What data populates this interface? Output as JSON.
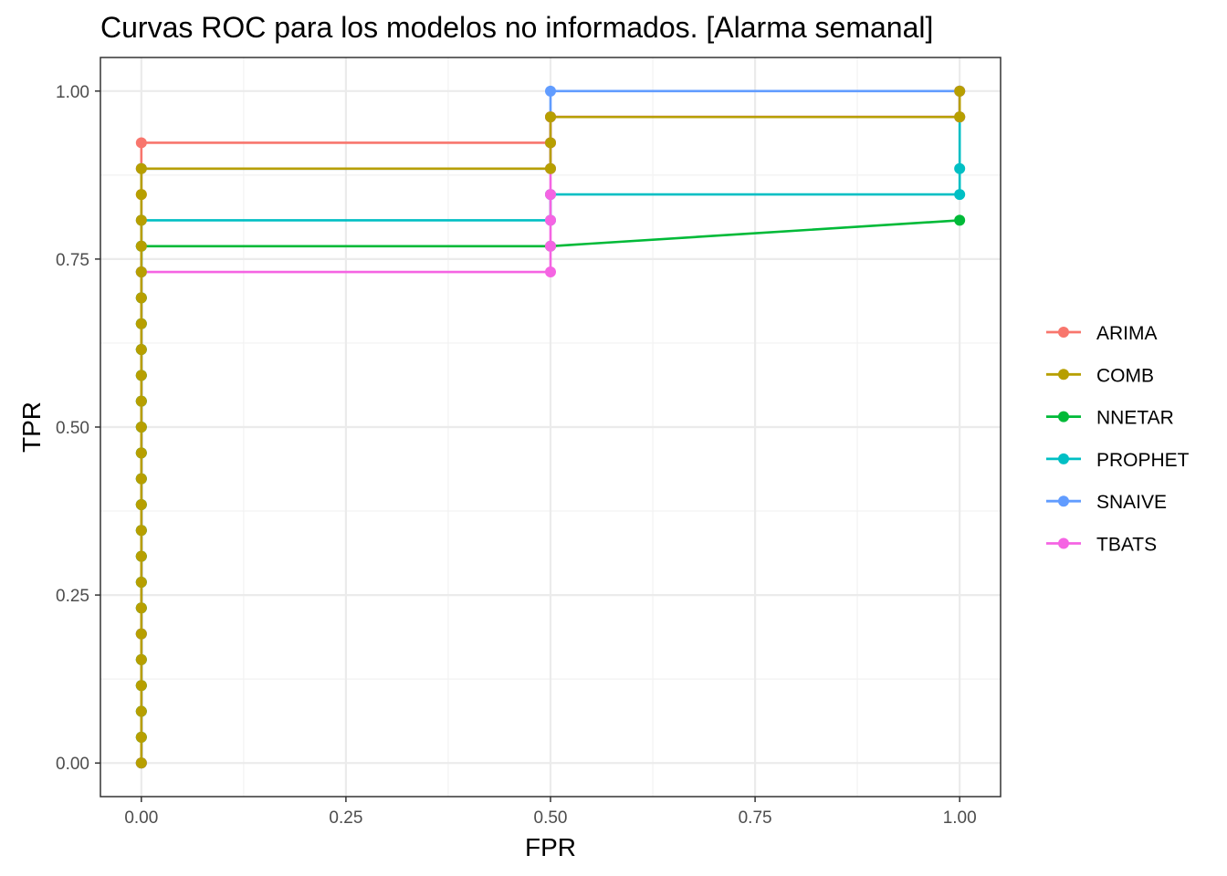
{
  "chart_data": {
    "type": "line",
    "title": "Curvas ROC para los modelos no informados. [Alarma semanal]",
    "xlabel": "FPR",
    "ylabel": "TPR",
    "xlim": [
      -0.05,
      1.05
    ],
    "ylim": [
      -0.05,
      1.05
    ],
    "xticks": [
      "0.00",
      "0.25",
      "0.50",
      "0.75",
      "1.00"
    ],
    "yticks": [
      "0.00",
      "0.25",
      "0.50",
      "0.75",
      "1.00"
    ],
    "grid": true,
    "legend_position": "right",
    "series": [
      {
        "name": "ARIMA",
        "color": "#F8766D",
        "points": [
          [
            0,
            0
          ],
          [
            0,
            0.0385
          ],
          [
            0,
            0.0769
          ],
          [
            0,
            0.1154
          ],
          [
            0,
            0.1538
          ],
          [
            0,
            0.1923
          ],
          [
            0,
            0.2308
          ],
          [
            0,
            0.2692
          ],
          [
            0,
            0.3077
          ],
          [
            0,
            0.3462
          ],
          [
            0,
            0.3846
          ],
          [
            0,
            0.4231
          ],
          [
            0,
            0.4615
          ],
          [
            0,
            0.5
          ],
          [
            0,
            0.5385
          ],
          [
            0,
            0.5769
          ],
          [
            0,
            0.6154
          ],
          [
            0,
            0.6538
          ],
          [
            0,
            0.6923
          ],
          [
            0,
            0.7308
          ],
          [
            0,
            0.7692
          ],
          [
            0,
            0.8077
          ],
          [
            0,
            0.8462
          ],
          [
            0,
            0.8846
          ],
          [
            0,
            0.9231
          ],
          [
            0.5,
            0.9231
          ],
          [
            0.5,
            0.9615
          ],
          [
            1,
            0.9615
          ],
          [
            1,
            1
          ]
        ]
      },
      {
        "name": "NNETAR",
        "color": "#00BA38",
        "points": [
          [
            0,
            0
          ],
          [
            0,
            0.0385
          ],
          [
            0,
            0.0769
          ],
          [
            0,
            0.1154
          ],
          [
            0,
            0.1538
          ],
          [
            0,
            0.1923
          ],
          [
            0,
            0.2308
          ],
          [
            0,
            0.2692
          ],
          [
            0,
            0.3077
          ],
          [
            0,
            0.3462
          ],
          [
            0,
            0.3846
          ],
          [
            0,
            0.4231
          ],
          [
            0,
            0.4615
          ],
          [
            0,
            0.5
          ],
          [
            0,
            0.5385
          ],
          [
            0,
            0.5769
          ],
          [
            0,
            0.6154
          ],
          [
            0,
            0.6538
          ],
          [
            0,
            0.6923
          ],
          [
            0,
            0.7308
          ],
          [
            0,
            0.7692
          ],
          [
            0.5,
            0.7692
          ],
          [
            1,
            0.8077
          ]
        ]
      },
      {
        "name": "PROPHET",
        "color": "#00BFC4",
        "points": [
          [
            0,
            0
          ],
          [
            0,
            0.0385
          ],
          [
            0,
            0.0769
          ],
          [
            0,
            0.1154
          ],
          [
            0,
            0.1538
          ],
          [
            0,
            0.1923
          ],
          [
            0,
            0.2308
          ],
          [
            0,
            0.2692
          ],
          [
            0,
            0.3077
          ],
          [
            0,
            0.3462
          ],
          [
            0,
            0.3846
          ],
          [
            0,
            0.4231
          ],
          [
            0,
            0.4615
          ],
          [
            0,
            0.5
          ],
          [
            0,
            0.5385
          ],
          [
            0,
            0.5769
          ],
          [
            0,
            0.6154
          ],
          [
            0,
            0.6538
          ],
          [
            0,
            0.6923
          ],
          [
            0,
            0.7308
          ],
          [
            0,
            0.7692
          ],
          [
            0,
            0.8077
          ],
          [
            0.5,
            0.8077
          ],
          [
            0.5,
            0.8462
          ],
          [
            1,
            0.8462
          ],
          [
            1,
            0.8846
          ],
          [
            1,
            0.9615
          ],
          [
            1,
            1
          ]
        ]
      },
      {
        "name": "SNAIVE",
        "color": "#619CFF",
        "points": [
          [
            0,
            0
          ],
          [
            0,
            0.1923
          ],
          [
            0,
            0.7308
          ],
          [
            0,
            0.8846
          ],
          [
            0.5,
            0.8846
          ],
          [
            0.5,
            0.9231
          ],
          [
            0.5,
            0.9615
          ],
          [
            0.5,
            1
          ],
          [
            1,
            1
          ]
        ]
      },
      {
        "name": "TBATS",
        "color": "#F564E3",
        "points": [
          [
            0,
            0
          ],
          [
            0,
            0.1923
          ],
          [
            0,
            0.7308
          ],
          [
            0.5,
            0.7308
          ],
          [
            0.5,
            0.7692
          ],
          [
            0.5,
            0.8077
          ],
          [
            0.5,
            0.8462
          ],
          [
            0.5,
            0.8846
          ],
          [
            0.5,
            0.9231
          ],
          [
            0.5,
            0.9615
          ],
          [
            1,
            0.9615
          ],
          [
            1,
            1
          ]
        ]
      },
      {
        "name": "COMB",
        "color": "#B79F00",
        "points": [
          [
            0,
            0
          ],
          [
            0,
            0.0385
          ],
          [
            0,
            0.0769
          ],
          [
            0,
            0.1154
          ],
          [
            0,
            0.1538
          ],
          [
            0,
            0.1923
          ],
          [
            0,
            0.2308
          ],
          [
            0,
            0.2692
          ],
          [
            0,
            0.3077
          ],
          [
            0,
            0.3462
          ],
          [
            0,
            0.3846
          ],
          [
            0,
            0.4231
          ],
          [
            0,
            0.4615
          ],
          [
            0,
            0.5
          ],
          [
            0,
            0.5385
          ],
          [
            0,
            0.5769
          ],
          [
            0,
            0.6154
          ],
          [
            0,
            0.6538
          ],
          [
            0,
            0.6923
          ],
          [
            0,
            0.7308
          ],
          [
            0,
            0.7692
          ],
          [
            0,
            0.8077
          ],
          [
            0,
            0.8462
          ],
          [
            0,
            0.8846
          ],
          [
            0.5,
            0.8846
          ],
          [
            0.5,
            0.9231
          ],
          [
            0.5,
            0.9615
          ],
          [
            1,
            0.9615
          ],
          [
            1,
            1
          ]
        ]
      }
    ],
    "legend": [
      {
        "name": "ARIMA",
        "color": "#F8766D"
      },
      {
        "name": "COMB",
        "color": "#B79F00"
      },
      {
        "name": "NNETAR",
        "color": "#00BA38"
      },
      {
        "name": "PROPHET",
        "color": "#00BFC4"
      },
      {
        "name": "SNAIVE",
        "color": "#619CFF"
      },
      {
        "name": "TBATS",
        "color": "#F564E3"
      }
    ]
  }
}
